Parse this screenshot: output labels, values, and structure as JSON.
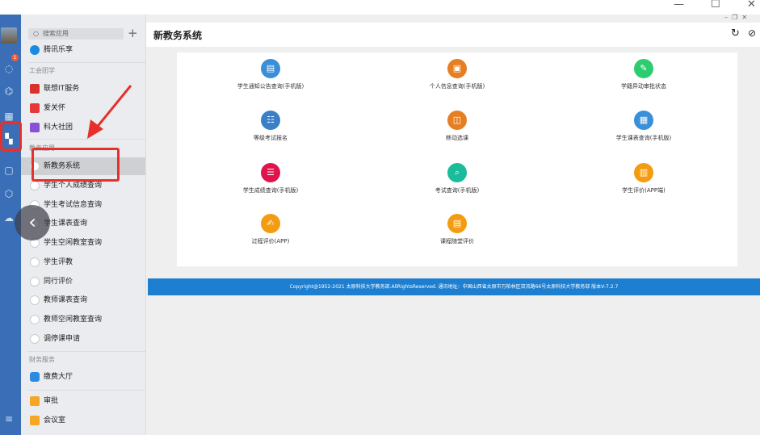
{
  "window_controls": {
    "minimize": "—",
    "maximize": "☐",
    "close": "✕"
  },
  "rail": {
    "badge": "1",
    "icons": [
      "chat-icon",
      "org-icon",
      "calendar-icon",
      "apps-icon",
      "w-icon",
      "cube-icon",
      "cloud-icon",
      "menu-icon"
    ]
  },
  "sidebar": {
    "search_placeholder": "搜索应用",
    "top_item": "腾讯乐享",
    "sections": [
      {
        "title": "工会团学",
        "items": [
          "联想IT服务",
          "爱关怀",
          "科大社团"
        ]
      },
      {
        "title": "教务应用",
        "items": [
          "新教务系统",
          "学生个人成绩查询",
          "学生考试信息查询",
          "学生课表查询",
          "学生空闲教室查询",
          "学生评教",
          "同行评价",
          "教师课表查询",
          "教师空闲教室查询",
          "调停课申请"
        ]
      },
      {
        "title": "财务服务",
        "items": [
          "缴费大厅"
        ]
      }
    ],
    "bottom_items": [
      "审批",
      "会议室"
    ],
    "selected": "新教务系统"
  },
  "main": {
    "title": "新教务系统",
    "apps": [
      {
        "label": "学生通知公告查询(手机版)",
        "color": "#3a8fd9",
        "icon": "▤"
      },
      {
        "label": "个人信息查询(手机版)",
        "color": "#e67e22",
        "icon": "▣"
      },
      {
        "label": "学籍异动审批状态",
        "color": "#2ecc71",
        "icon": "✎"
      },
      {
        "label": "等级考试报名",
        "color": "#3a7fc8",
        "icon": "☷"
      },
      {
        "label": "移动选课",
        "color": "#e67e22",
        "icon": "◫"
      },
      {
        "label": "学生课表查询(手机版)",
        "color": "#3a8fd9",
        "icon": "▦"
      },
      {
        "label": "学生成绩查询(手机版)",
        "color": "#e0144c",
        "icon": "☰"
      },
      {
        "label": "考试查询(手机版)",
        "color": "#1abc9c",
        "icon": "⌕"
      },
      {
        "label": "学生评价(APP端)",
        "color": "#f39c12",
        "icon": "▥"
      },
      {
        "label": "过程评价(APP)",
        "color": "#f39c12",
        "icon": "✍"
      },
      {
        "label": "课程随堂评价",
        "color": "#f39c12",
        "icon": "▤"
      }
    ],
    "footer": "Copyright@1952-2021 太原科技大学教务部.AllRightsReserved.      通讯地址：中国山西省太原市万柏林区窊流路66号太原科技大学教务部   版本V-7.2.7"
  }
}
